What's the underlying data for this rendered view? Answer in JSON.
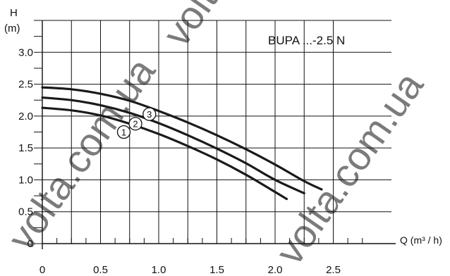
{
  "chart_data": {
    "type": "line",
    "title": "BUPA ...-2.5 N",
    "ylabel_symbol": "H",
    "ylabel_unit": "(m)",
    "xlabel": "Q (m³ / h)",
    "x_tick_labels": [
      "0",
      "0.5",
      "1.0",
      "1.5",
      "2.0",
      "2.5"
    ],
    "x_tick_values": [
      0,
      0.5,
      1.0,
      1.5,
      2.0,
      2.5
    ],
    "y_tick_labels": [
      "0",
      "0.5",
      "1.0",
      "1.5",
      "2.0",
      "2.5",
      "3.0"
    ],
    "y_tick_values": [
      0,
      0.5,
      1.0,
      1.5,
      2.0,
      2.5,
      3.0
    ],
    "xlim": [
      0,
      3.0
    ],
    "ylim": [
      0,
      3.5
    ],
    "grid": true,
    "series": [
      {
        "name": "1",
        "x": [
          0,
          0.25,
          0.5,
          0.75,
          1.0,
          1.25,
          1.5,
          1.75,
          2.0,
          2.1
        ],
        "y": [
          2.13,
          2.09,
          2.01,
          1.88,
          1.72,
          1.53,
          1.32,
          1.08,
          0.81,
          0.7
        ]
      },
      {
        "name": "2",
        "x": [
          0,
          0.25,
          0.5,
          0.75,
          1.0,
          1.25,
          1.5,
          1.75,
          2.0,
          2.25
        ],
        "y": [
          2.29,
          2.25,
          2.17,
          2.05,
          1.89,
          1.7,
          1.49,
          1.26,
          1.0,
          0.79
        ]
      },
      {
        "name": "3",
        "x": [
          0,
          0.25,
          0.5,
          0.75,
          1.0,
          1.25,
          1.5,
          1.75,
          2.0,
          2.25,
          2.4
        ],
        "y": [
          2.45,
          2.42,
          2.35,
          2.24,
          2.08,
          1.9,
          1.7,
          1.48,
          1.24,
          0.98,
          0.85
        ]
      }
    ],
    "curve_labels": [
      {
        "label": "1",
        "x": 0.7,
        "y": 1.75
      },
      {
        "label": "2",
        "x": 0.8,
        "y": 1.88
      },
      {
        "label": "3",
        "x": 0.92,
        "y": 2.03
      }
    ],
    "watermark": "volta.com.ua"
  }
}
